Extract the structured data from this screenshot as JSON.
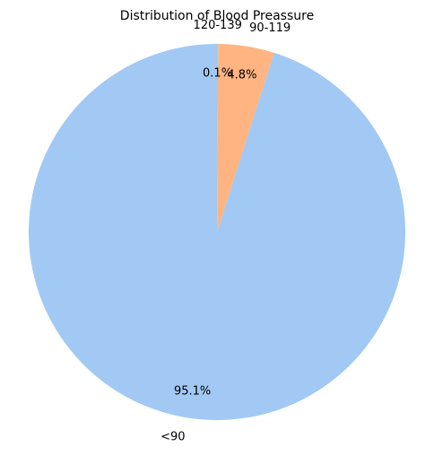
{
  "chart_data": {
    "type": "pie",
    "title": "Distribution of Blood Preassure",
    "categories": [
      "<90",
      "90-119",
      "120-139"
    ],
    "values": [
      95.1,
      4.8,
      0.1
    ],
    "percent_labels": [
      "95.1%",
      "4.8%",
      "0.1%"
    ],
    "colors": [
      "#a1c9f4",
      "#ffb482",
      "#8de5a1"
    ],
    "start_angle_deg": 90,
    "direction": "counterclockwise",
    "legend": "none"
  }
}
